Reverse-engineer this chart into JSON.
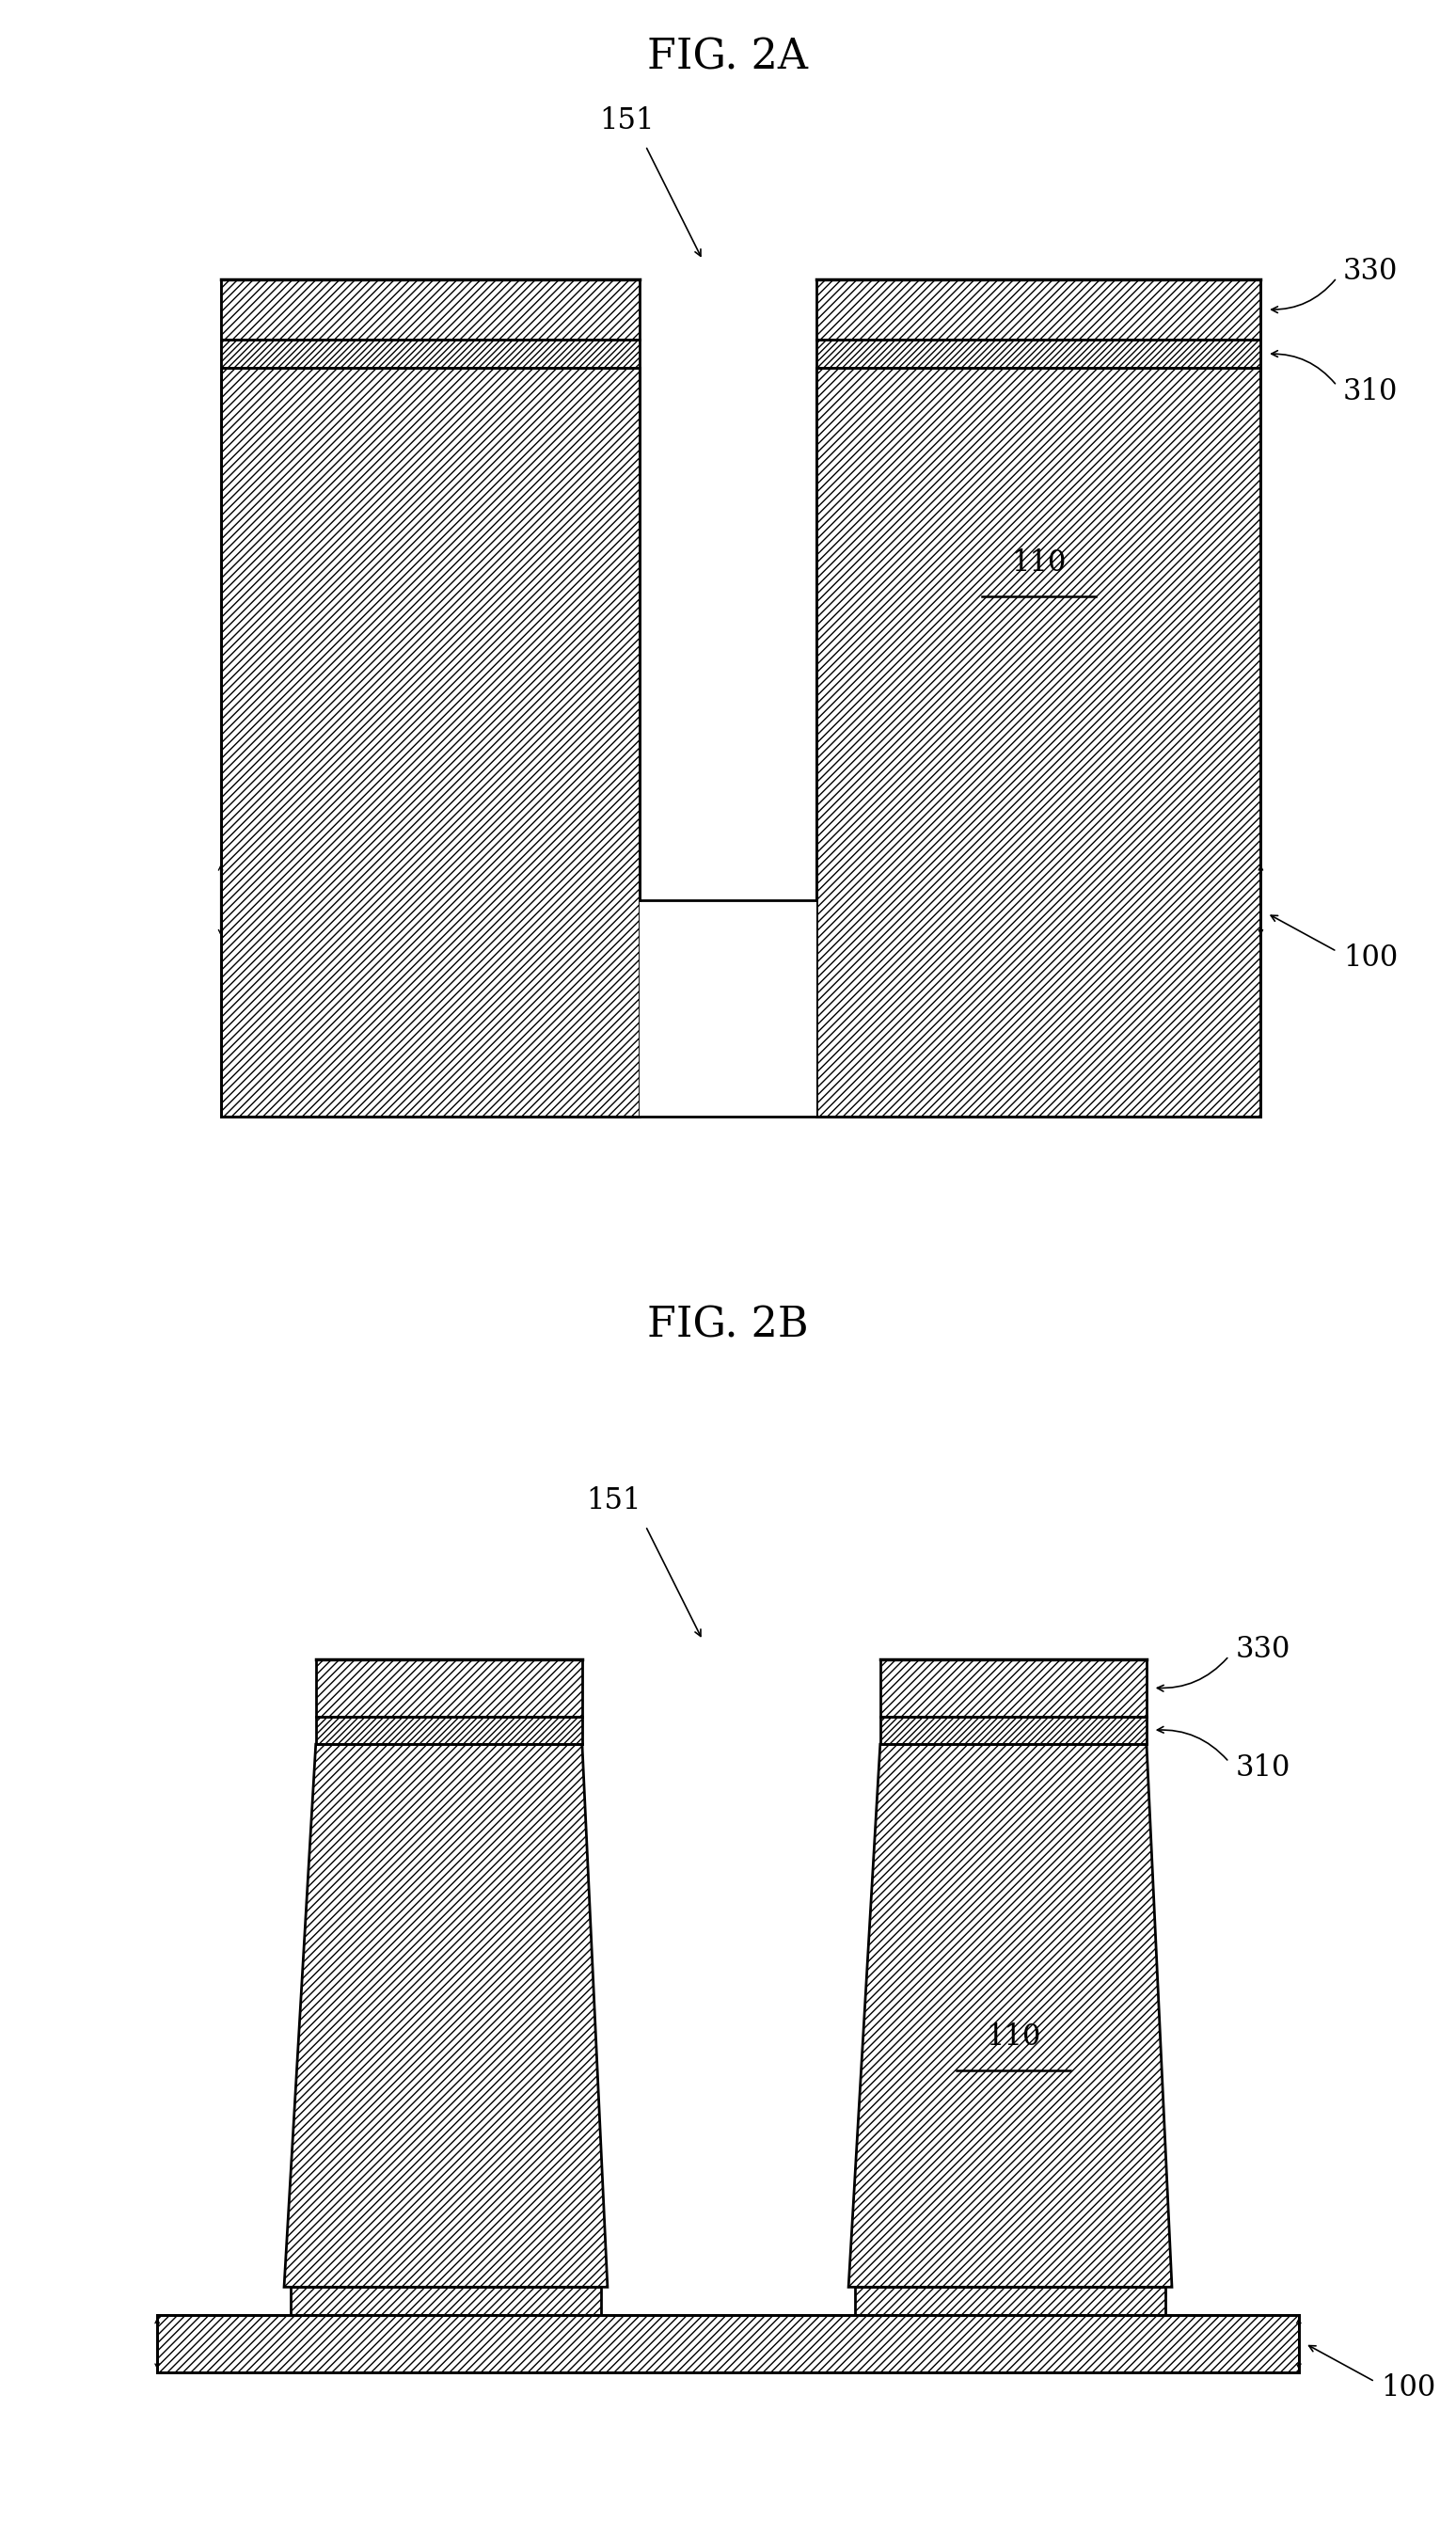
{
  "bg_color": "#ffffff",
  "fig_2a_title": "FIG. 2A",
  "fig_2b_title": "FIG. 2B",
  "label_100": "100",
  "label_110": "110",
  "label_151": "151",
  "label_310": "310",
  "label_330": "330",
  "title_fontsize": 32,
  "label_fontsize": 22,
  "lw": 2.0
}
